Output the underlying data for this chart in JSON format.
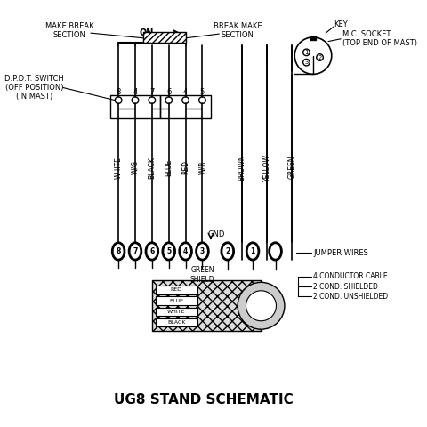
{
  "title": "UG8 STAND SCHEMATIC",
  "background_color": "#ffffff",
  "line_color": "#000000",
  "fig_width": 4.81,
  "fig_height": 4.8,
  "dpi": 100,
  "labels": {
    "make_break": "MAKE BREAK\nSECTION",
    "break_make": "BREAK MAKE\nSECTION",
    "on_arrow": "ON",
    "key": "KEY",
    "mic_socket": "MIC. SOCKET\n(TOP END OF MAST)",
    "dpdt": "D.P.D.T. SWITCH\n(OFF POSITION)\n(IN MAST)",
    "jumper_wires": "JUMPER WIRES",
    "cable_4": "4 CONDUCTOR CABLE",
    "cable_2s": "2 COND. SHIELDED",
    "cable_2u": "2 COND. UNSHIELDED",
    "gnd": "GND",
    "green_shield": "GREEN\nSHIELD"
  },
  "wire_labels": [
    "WHITE",
    "W/G",
    "BLACK",
    "BLUE",
    "RED",
    "W/R",
    "BROWN",
    "YELLOW",
    "GREEN"
  ],
  "terminal_numbers": [
    "8",
    "7",
    "6",
    "5",
    "4",
    "3",
    "2",
    "1"
  ],
  "socket_numbers": [
    "1",
    "2",
    "3"
  ]
}
